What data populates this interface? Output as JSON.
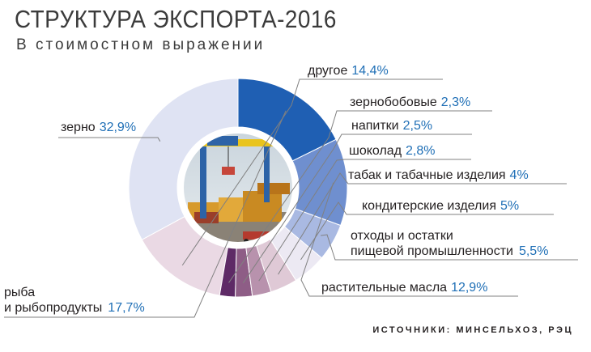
{
  "header": {
    "title": "СТРУКТУРА ЭКСПОРТА-2016",
    "subtitle": "В стоимостном выражении"
  },
  "source": "ИСТОЧНИКИ: МИНСЕЛЬХОЗ, РЭЦ",
  "colors": {
    "zerno": "#dfe3f3",
    "ryba": "#1f5fb3",
    "masla": "#6f8fcf",
    "othody": "#a9b9e2",
    "konditer": "#ece9f3",
    "tabak": "#dfc9d6",
    "shokolad": "#b892ad",
    "napitki": "#8e5d86",
    "zernobob": "#5e2a66",
    "drugoe": "#ead9e4",
    "percent": "#1f6fb6",
    "leader": "#808080"
  },
  "chart_data": {
    "type": "pie",
    "variant": "donut",
    "unit": "%",
    "categories": [
      "зерно",
      "другое",
      "зернобобовые",
      "напитки",
      "шоколад",
      "табак и табачные изделия",
      "кондитерские изделия",
      "отходы и остатки пищевой промышленности",
      "растительные масла",
      "рыба и рыбопродукты"
    ],
    "values": [
      32.9,
      14.4,
      2.3,
      2.5,
      2.8,
      4,
      5,
      5.5,
      12.9,
      17.7
    ],
    "value_labels": [
      "32,9%",
      "14,4%",
      "2,3%",
      "2,5%",
      "2,8%",
      "4%",
      "5%",
      "5,5%",
      "12,9%",
      "17,7%"
    ],
    "colors": [
      "#dfe3f3",
      "#ead9e4",
      "#5e2a66",
      "#8e5d86",
      "#b892ad",
      "#dfc9d6",
      "#ece9f3",
      "#a9b9e2",
      "#6f8fcf",
      "#1f5fb3"
    ]
  },
  "labels": {
    "zerno": {
      "name": "зерно",
      "value": "32,9%"
    },
    "drugoe": {
      "name": "другое",
      "value": "14,4%"
    },
    "zernobob": {
      "name": "зернобобовые",
      "value": "2,3%"
    },
    "napitki": {
      "name": "напитки",
      "value": "2,5%"
    },
    "shokolad": {
      "name": "шоколад",
      "value": "2,8%"
    },
    "tabak": {
      "name": "табак и табачные изделия",
      "value": "4%"
    },
    "konditer": {
      "name": "кондитерские изделия",
      "value": "5%"
    },
    "othody": {
      "line1": "отходы и остатки",
      "line2": "пищевой промышленности",
      "value": "5,5%"
    },
    "masla": {
      "name": "растительные масла",
      "value": "12,9%"
    },
    "ryba": {
      "line1": "рыба",
      "line2": "и рыбопродукты",
      "value": "17,7%"
    }
  },
  "photo": {
    "icon": "port-container-crane-photo"
  }
}
